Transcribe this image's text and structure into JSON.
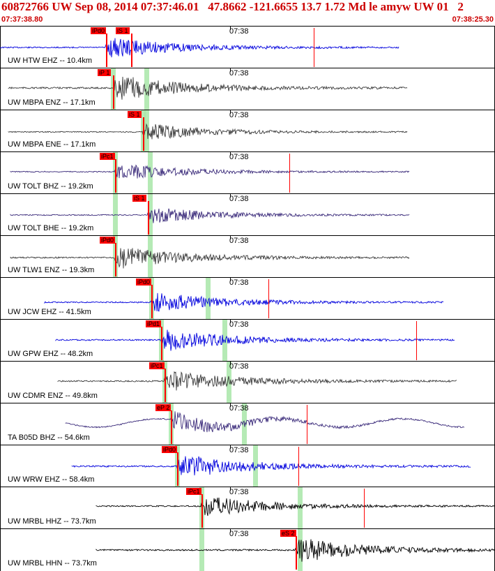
{
  "header": {
    "title": "60872766 UW Sep 08, 2014 07:37:46.01   47.8662 -121.6655 13.7 1.72 Md le amyw UW 01   2",
    "start_time": "07:37:38.80",
    "end_time": "07:38:25.30"
  },
  "colors": {
    "accent": "#cc0000",
    "pick": "#ff0000",
    "shade": "#a8e6a8"
  },
  "clock_label": "07:38",
  "traces": [
    {
      "label": "UW HTW EHZ -- 10.4km",
      "color": "#0000dd",
      "picks": [
        "iPd0",
        "iS 1"
      ],
      "amp": 0.55
    },
    {
      "label": "UW MBPA ENZ -- 17.1km",
      "color": "#3a3a3a",
      "picks": [
        "iP 1"
      ],
      "amp": 0.7
    },
    {
      "label": "UW MBPA ENE -- 17.1km",
      "color": "#3a3a3a",
      "picks": [
        "iS 1"
      ],
      "amp": 0.45
    },
    {
      "label": "UW TOLT BHZ -- 19.2km",
      "color": "#3a2a7a",
      "picks": [
        "iPc1"
      ],
      "amp": 0.45
    },
    {
      "label": "UW TOLT BHE -- 19.2km",
      "color": "#3a2a7a",
      "picks": [
        "iS 1"
      ],
      "amp": 0.45
    },
    {
      "label": "UW TLW1 ENZ -- 19.3km",
      "color": "#3a3a3a",
      "picks": [
        "iPd0"
      ],
      "amp": 0.6
    },
    {
      "label": "UW JCW EHZ -- 41.5km",
      "color": "#0000dd",
      "picks": [
        "iPd0"
      ],
      "amp": 0.55
    },
    {
      "label": "UW GPW EHZ -- 48.2km",
      "color": "#0000dd",
      "picks": [
        "iPd1"
      ],
      "amp": 0.6
    },
    {
      "label": "UW CDMR ENZ -- 49.8km",
      "color": "#3a3a3a",
      "picks": [
        "iPc1"
      ],
      "amp": 0.6
    },
    {
      "label": "TA B05D BHZ -- 54.6km",
      "color": "#3a2a7a",
      "picks": [
        "eP 2"
      ],
      "amp": 0.5
    },
    {
      "label": "UW WRW EHZ -- 58.4km",
      "color": "#0000dd",
      "picks": [
        "iPd0"
      ],
      "amp": 0.65
    },
    {
      "label": "UW MRBL HHZ -- 73.7km",
      "color": "#000000",
      "picks": [
        "iPc1"
      ],
      "amp": 0.55
    },
    {
      "label": "UW MRBL HHN -- 73.7km",
      "color": "#000000",
      "picks": [
        "eS 2"
      ],
      "amp": 0.65
    }
  ]
}
